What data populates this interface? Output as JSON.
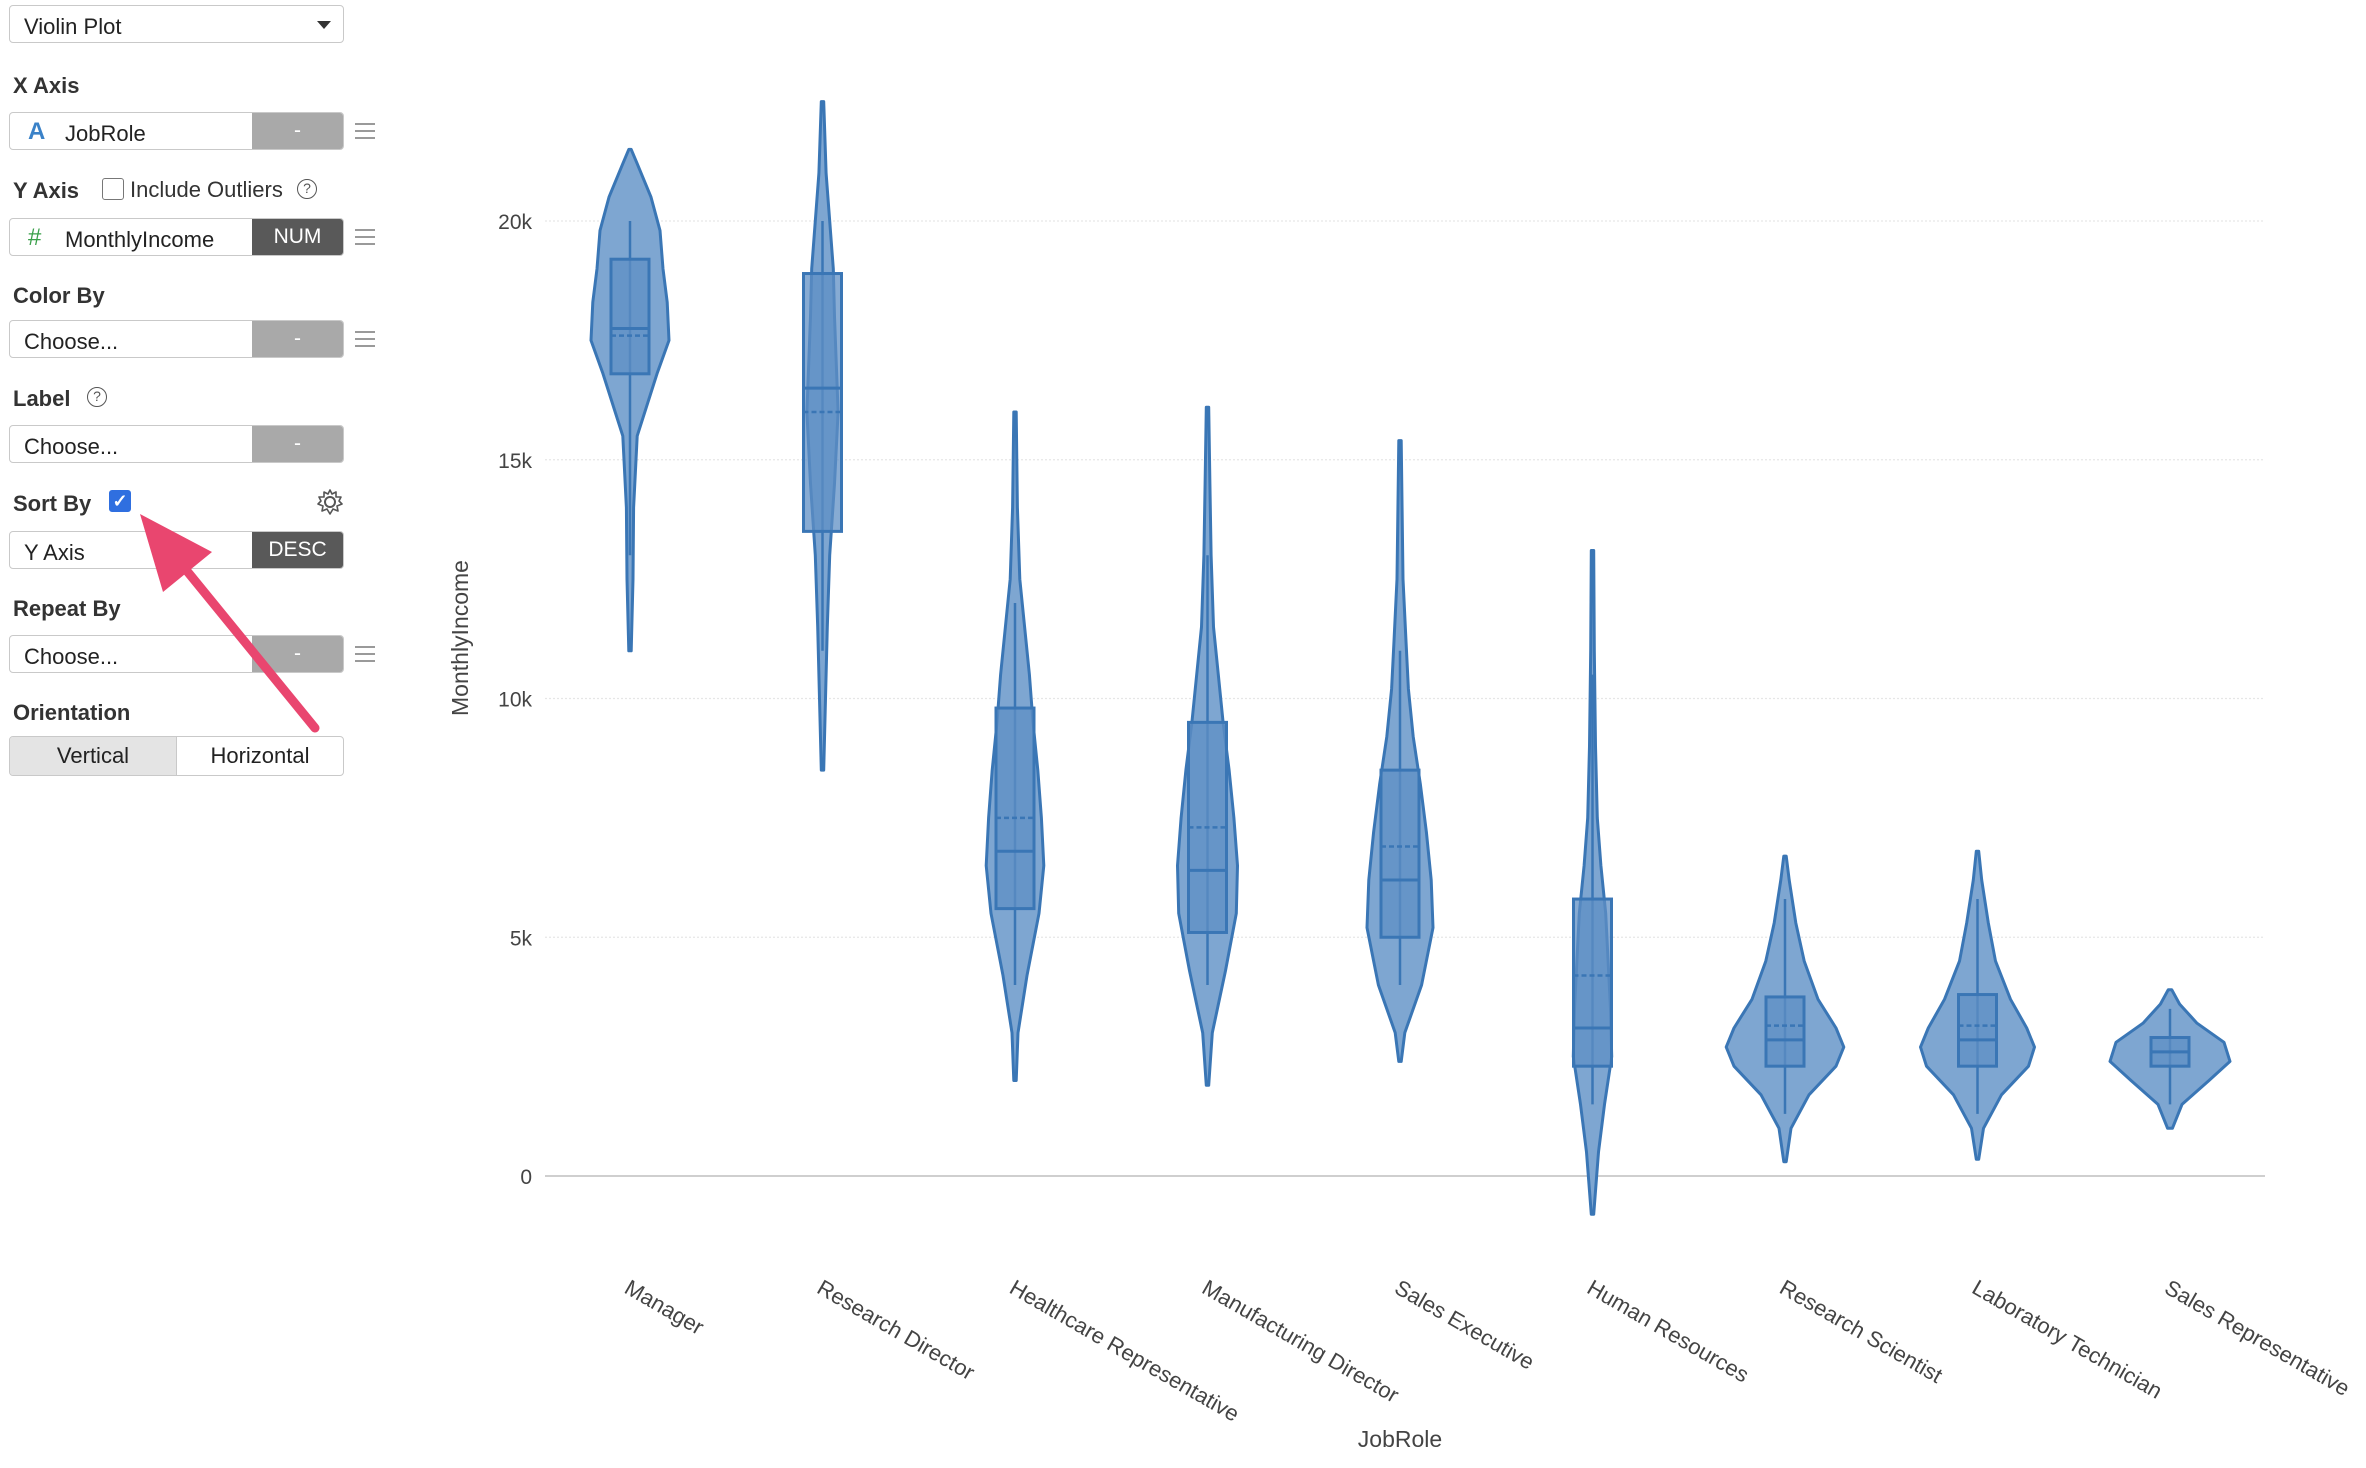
{
  "chart_type_select": {
    "value": "Violin Plot"
  },
  "x_axis": {
    "label": "X Axis",
    "field": "JobRole",
    "icon": "A",
    "type_button": "-"
  },
  "y_axis": {
    "label": "Y Axis",
    "include_outliers_label": "Include Outliers",
    "include_outliers_checked": false,
    "help": "?",
    "field": "MonthlyIncome",
    "icon": "#",
    "type_button": "NUM"
  },
  "color_by": {
    "label": "Color By",
    "value": "Choose...",
    "button": "-"
  },
  "label_field": {
    "label": "Label",
    "help": "?",
    "value": "Choose...",
    "button": "-"
  },
  "sort_by": {
    "label": "Sort By",
    "checked": true,
    "check_glyph": "✓",
    "value": "Y Axis",
    "button": "DESC",
    "settings_icon": "gear-icon"
  },
  "repeat_by": {
    "label": "Repeat By",
    "value": "Choose...",
    "button": "-"
  },
  "orientation": {
    "label": "Orientation",
    "options": [
      "Vertical",
      "Horizontal"
    ],
    "selected": "Vertical"
  },
  "colors": {
    "violin_fill": "#7ea6d1",
    "violin_stroke": "#3a76b5",
    "accent_check": "#2f6fe0",
    "arrow": "#e9466f",
    "dark_button": "#595959",
    "gray_button": "#a9a9a9"
  },
  "chart_data": {
    "type": "violin",
    "xlabel": "JobRole",
    "ylabel": "MonthlyIncome",
    "ylim": [
      -1000,
      23000
    ],
    "yticks": [
      0,
      5000,
      10000,
      15000,
      20000
    ],
    "ytick_labels": [
      "0",
      "5k",
      "10k",
      "15k",
      "20k"
    ],
    "grid": true,
    "sort": "Y Axis DESC",
    "categories": [
      "Manager",
      "Research Director",
      "Healthcare Representative",
      "Manufacturing Director",
      "Sales Executive",
      "Human Resources",
      "Research Scientist",
      "Laboratory Technician",
      "Sales Representative"
    ],
    "violins": [
      {
        "cat": "Manager",
        "min": 11000,
        "max": 21500,
        "q1": 16800,
        "median": 17750,
        "q3": 19200,
        "mean": 17600,
        "wlo": 13000,
        "whi": 20000,
        "width": [
          [
            11000,
            0.02
          ],
          [
            12500,
            0.05
          ],
          [
            14000,
            0.06
          ],
          [
            15500,
            0.12
          ],
          [
            16800,
            0.45
          ],
          [
            17500,
            0.65
          ],
          [
            18300,
            0.62
          ],
          [
            19000,
            0.55
          ],
          [
            19800,
            0.5
          ],
          [
            20500,
            0.35
          ],
          [
            21200,
            0.12
          ],
          [
            21500,
            0.02
          ]
        ]
      },
      {
        "cat": "Research Director",
        "min": 8500,
        "max": 22500,
        "q1": 13500,
        "median": 16500,
        "q3": 18900,
        "mean": 16000,
        "wlo": 11000,
        "whi": 20000,
        "width": [
          [
            8500,
            0.02
          ],
          [
            10000,
            0.05
          ],
          [
            11500,
            0.08
          ],
          [
            13000,
            0.12
          ],
          [
            14500,
            0.2
          ],
          [
            16000,
            0.26
          ],
          [
            17000,
            0.23
          ],
          [
            18000,
            0.2
          ],
          [
            19000,
            0.18
          ],
          [
            20000,
            0.12
          ],
          [
            21000,
            0.06
          ],
          [
            22500,
            0.02
          ]
        ]
      },
      {
        "cat": "Healthcare Representative",
        "min": 2000,
        "max": 16000,
        "q1": 5600,
        "median": 6800,
        "q3": 9800,
        "mean": 7500,
        "wlo": 4000,
        "whi": 12000,
        "width": [
          [
            2000,
            0.02
          ],
          [
            3000,
            0.05
          ],
          [
            4200,
            0.2
          ],
          [
            5500,
            0.4
          ],
          [
            6500,
            0.48
          ],
          [
            7500,
            0.44
          ],
          [
            8500,
            0.38
          ],
          [
            9500,
            0.3
          ],
          [
            10500,
            0.24
          ],
          [
            11500,
            0.16
          ],
          [
            12500,
            0.08
          ],
          [
            14000,
            0.04
          ],
          [
            16000,
            0.02
          ]
        ]
      },
      {
        "cat": "Manufacturing Director",
        "min": 1900,
        "max": 16100,
        "q1": 5100,
        "median": 6400,
        "q3": 9500,
        "mean": 7300,
        "wlo": 4000,
        "whi": 13000,
        "width": [
          [
            1900,
            0.02
          ],
          [
            3000,
            0.08
          ],
          [
            4300,
            0.3
          ],
          [
            5500,
            0.48
          ],
          [
            6500,
            0.5
          ],
          [
            7500,
            0.44
          ],
          [
            8500,
            0.36
          ],
          [
            9500,
            0.26
          ],
          [
            10500,
            0.18
          ],
          [
            11500,
            0.1
          ],
          [
            13000,
            0.06
          ],
          [
            14500,
            0.04
          ],
          [
            16100,
            0.02
          ]
        ]
      },
      {
        "cat": "Sales Executive",
        "min": 2400,
        "max": 15400,
        "q1": 5000,
        "median": 6200,
        "q3": 8500,
        "mean": 6900,
        "wlo": 4000,
        "whi": 11000,
        "width": [
          [
            2400,
            0.02
          ],
          [
            3000,
            0.08
          ],
          [
            4000,
            0.36
          ],
          [
            5200,
            0.55
          ],
          [
            6200,
            0.52
          ],
          [
            7200,
            0.44
          ],
          [
            8200,
            0.34
          ],
          [
            9200,
            0.22
          ],
          [
            10200,
            0.14
          ],
          [
            11200,
            0.1
          ],
          [
            12500,
            0.05
          ],
          [
            15400,
            0.02
          ]
        ]
      },
      {
        "cat": "Human Resources",
        "min": -800,
        "max": 13100,
        "q1": 2300,
        "median": 3100,
        "q3": 5800,
        "mean": 4200,
        "wlo": 1500,
        "whi": 10500,
        "width": [
          [
            -800,
            0.02
          ],
          [
            500,
            0.1
          ],
          [
            1500,
            0.2
          ],
          [
            2500,
            0.32
          ],
          [
            3500,
            0.3
          ],
          [
            4500,
            0.26
          ],
          [
            5500,
            0.22
          ],
          [
            6500,
            0.14
          ],
          [
            7500,
            0.08
          ],
          [
            9000,
            0.05
          ],
          [
            11000,
            0.03
          ],
          [
            13100,
            0.02
          ]
        ]
      },
      {
        "cat": "Research Scientist",
        "min": 300,
        "max": 6700,
        "q1": 2300,
        "median": 2850,
        "q3": 3750,
        "mean": 3150,
        "wlo": 1300,
        "whi": 5800,
        "width": [
          [
            300,
            0.02
          ],
          [
            1000,
            0.1
          ],
          [
            1700,
            0.4
          ],
          [
            2300,
            0.85
          ],
          [
            2700,
            0.98
          ],
          [
            3100,
            0.85
          ],
          [
            3700,
            0.55
          ],
          [
            4500,
            0.32
          ],
          [
            5300,
            0.18
          ],
          [
            6200,
            0.07
          ],
          [
            6700,
            0.02
          ]
        ]
      },
      {
        "cat": "Laboratory Technician",
        "min": 350,
        "max": 6800,
        "q1": 2300,
        "median": 2850,
        "q3": 3800,
        "mean": 3150,
        "wlo": 1300,
        "whi": 5800,
        "width": [
          [
            350,
            0.02
          ],
          [
            1000,
            0.1
          ],
          [
            1700,
            0.4
          ],
          [
            2300,
            0.85
          ],
          [
            2700,
            0.95
          ],
          [
            3100,
            0.82
          ],
          [
            3700,
            0.55
          ],
          [
            4500,
            0.3
          ],
          [
            5300,
            0.18
          ],
          [
            6200,
            0.07
          ],
          [
            6800,
            0.02
          ]
        ]
      },
      {
        "cat": "Sales Representative",
        "min": 1000,
        "max": 3900,
        "q1": 2300,
        "median": 2600,
        "q3": 2900,
        "mean": 2600,
        "wlo": 1500,
        "whi": 3500,
        "width": [
          [
            1000,
            0.04
          ],
          [
            1500,
            0.2
          ],
          [
            2000,
            0.65
          ],
          [
            2400,
            1.0
          ],
          [
            2800,
            0.9
          ],
          [
            3200,
            0.45
          ],
          [
            3600,
            0.16
          ],
          [
            3900,
            0.03
          ]
        ]
      }
    ]
  }
}
